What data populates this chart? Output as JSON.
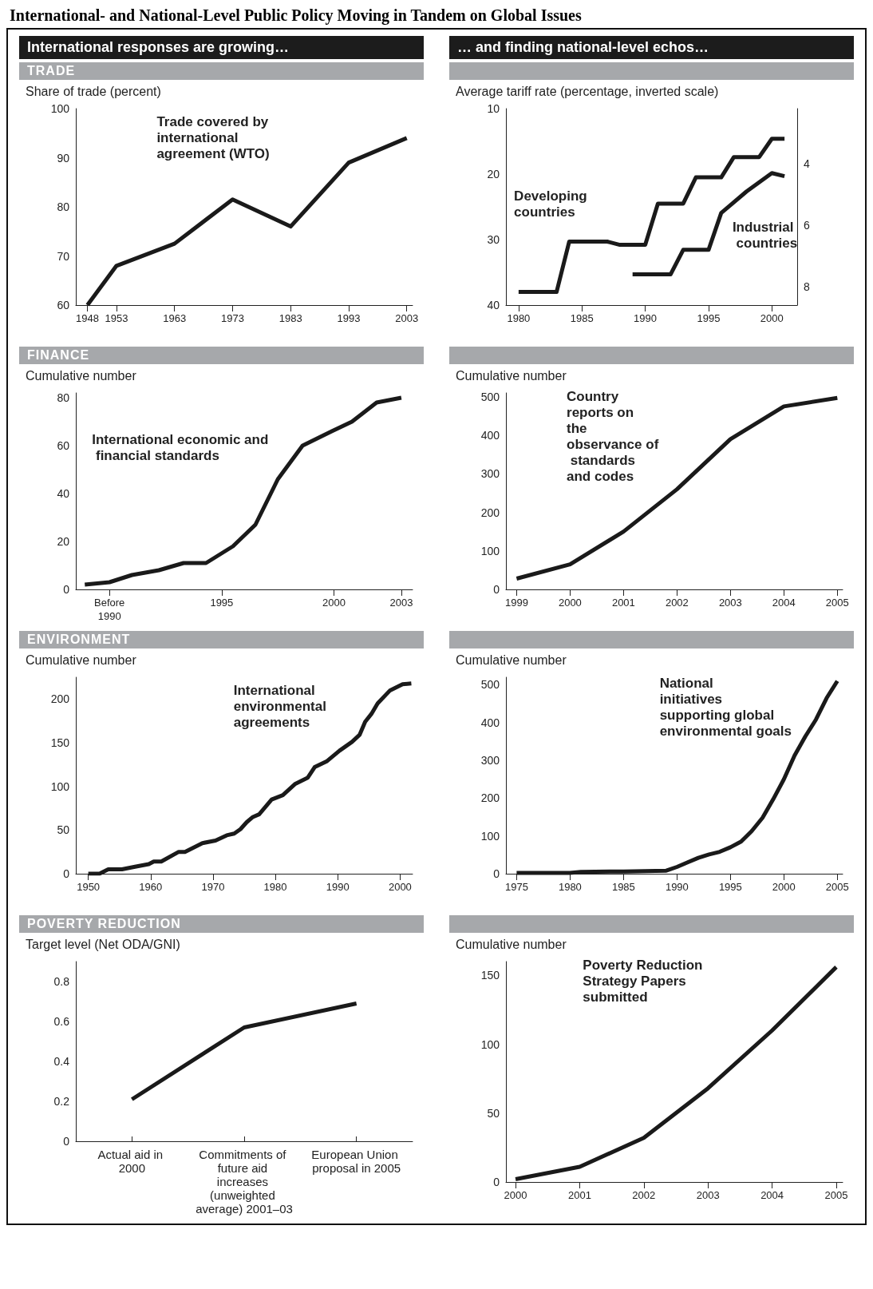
{
  "chart_data": [
    {
      "type": "line",
      "title": "TRADE",
      "subtitle": "International responses are growing…",
      "annotations": [
        "International- and National-Level Public Policy Moving in Tandem on Global Issues"
      ],
      "ylabel": "Share of trade (percent)",
      "xlim": [
        1946,
        2004
      ],
      "xticks": [
        1948,
        1953,
        1963,
        1973,
        1983,
        1993,
        2003
      ],
      "ylim": [
        60,
        100
      ],
      "yticks": [
        60,
        70,
        80,
        90,
        100
      ],
      "series": [
        {
          "name": "Trade covered by international agreement (WTO)",
          "color": "#1a1a1a",
          "x": [
            1948,
            1953,
            1963,
            1973,
            1983,
            1993,
            2003
          ],
          "values": [
            60,
            68,
            72.5,
            81.5,
            76,
            89,
            94
          ]
        }
      ]
    },
    {
      "type": "line",
      "subtitle": "… and finding national-level echos…",
      "ylabel": "Average tariff rate (percentage, inverted scale)",
      "xlim": [
        1979,
        2002
      ],
      "xticks": [
        1980,
        1985,
        1990,
        1995,
        2000
      ],
      "ylim": [
        40,
        10
      ],
      "yticks": [
        10,
        20,
        30,
        40
      ],
      "y2lim": [
        8.6,
        2.2
      ],
      "y2ticks": [
        4,
        6,
        8
      ],
      "series": [
        {
          "name": "Developing countries",
          "color": "#1a1a1a",
          "x": [
            1980,
            1983,
            1984,
            1987,
            1988,
            1990,
            1991,
            1993,
            1994,
            1996,
            1997,
            1999,
            2000,
            2001
          ],
          "values": [
            38,
            38,
            30.3,
            30.3,
            30.8,
            30.8,
            24.5,
            24.5,
            20.5,
            20.5,
            17.4,
            17.4,
            14.6,
            14.6
          ]
        },
        {
          "name": "Industrial countries",
          "color": "#1a1a1a",
          "axis": "y2",
          "x": [
            1989,
            1992,
            1993,
            1995,
            1996,
            1998,
            2000,
            2001
          ],
          "values": [
            7.6,
            7.6,
            6.8,
            6.8,
            5.6,
            4.9,
            4.3,
            4.4
          ]
        }
      ]
    },
    {
      "type": "line",
      "title": "FINANCE",
      "ylabel": "Cumulative number",
      "xlim": [
        1988.5,
        2003.5
      ],
      "xticks": [
        {
          "value": 1990,
          "label": "Before 1990"
        },
        1995,
        2000,
        2003
      ],
      "ylim": [
        0,
        82
      ],
      "yticks": [
        0,
        20,
        40,
        60,
        80
      ],
      "series": [
        {
          "name": "International economic and financial standards",
          "color": "#1a1a1a",
          "x": [
            1988.9,
            1990,
            1991,
            1992.2,
            1993.3,
            1994.3,
            1995.5,
            1996.5,
            1997.5,
            1998.6,
            1999.9,
            2000.8,
            2001.9,
            2003
          ],
          "values": [
            2,
            3,
            6,
            8,
            11,
            11,
            18,
            27,
            46,
            60,
            66,
            70,
            78,
            80
          ]
        }
      ]
    },
    {
      "type": "line",
      "ylabel": "Cumulative number",
      "xlim": [
        1998.8,
        2005.1
      ],
      "xticks": [
        1999,
        2000,
        2001,
        2002,
        2003,
        2004,
        2005
      ],
      "ylim": [
        0,
        510
      ],
      "yticks": [
        0,
        100,
        200,
        300,
        400,
        500
      ],
      "series": [
        {
          "name": "Country reports on the observance of standards and codes",
          "color": "#1a1a1a",
          "x": [
            1999,
            2000,
            2001,
            2002,
            2003,
            2004,
            2005
          ],
          "values": [
            28,
            65,
            150,
            260,
            390,
            475,
            497
          ]
        }
      ]
    },
    {
      "type": "line",
      "title": "ENVIRONMENT",
      "ylabel": "Cumulative number",
      "xlim": [
        1948,
        2002
      ],
      "xticks": [
        1950,
        1960,
        1970,
        1980,
        1990,
        2000
      ],
      "ylim": [
        0,
        225
      ],
      "yticks": [
        0,
        50,
        100,
        150,
        200
      ],
      "series": [
        {
          "name": "International environmental agreements",
          "color": "#1a1a1a",
          "x": [
            1950,
            1951.8,
            1953.2,
            1955.4,
            1957.5,
            1959.7,
            1960.5,
            1961.7,
            1964.5,
            1965.5,
            1968.3,
            1970.4,
            1972.2,
            1973.4,
            1974.4,
            1975.4,
            1976.4,
            1977.4,
            1979.4,
            1981.2,
            1983.2,
            1985.2,
            1986.3,
            1988.3,
            1990.3,
            1992.3,
            1993.5,
            1994.4,
            1995.4,
            1996.4,
            1998.4,
            2000.4,
            2001.8
          ],
          "values": [
            0,
            0,
            5,
            5,
            8,
            11,
            14,
            14,
            25,
            25,
            35,
            38,
            44,
            46,
            51,
            59,
            65,
            68,
            85,
            90,
            103,
            110,
            122,
            129,
            141,
            151,
            159,
            174,
            183,
            195,
            210,
            217,
            218
          ]
        }
      ]
    },
    {
      "type": "line",
      "ylabel": "Cumulative number",
      "xlim": [
        1974,
        2005.5
      ],
      "xticks": [
        1975,
        1980,
        1985,
        1990,
        1995,
        2000,
        2005
      ],
      "ylim": [
        0,
        520
      ],
      "yticks": [
        0,
        100,
        200,
        300,
        400,
        500
      ],
      "series": [
        {
          "name": "National initiatives supporting global environmental goals",
          "color": "#1a1a1a",
          "x": [
            1975,
            1976,
            1980,
            1981,
            1985,
            1989,
            1990,
            1991,
            1992,
            1993,
            1994,
            1995,
            1996,
            1997,
            1998,
            1999,
            2000,
            2001,
            2002,
            2003,
            2004,
            2005
          ],
          "values": [
            2,
            2,
            2,
            5,
            6,
            8,
            18,
            30,
            42,
            51,
            58,
            70,
            85,
            113,
            148,
            197,
            250,
            313,
            363,
            408,
            465,
            510
          ]
        }
      ]
    },
    {
      "type": "line",
      "title": "POVERTY REDUCTION",
      "ylabel": "Target level (Net ODA/GNI)",
      "categories": [
        "Actual aid in 2000",
        "Commitments of future aid increases (unweighted average) 2001–03",
        "European Union proposal in 2005"
      ],
      "ylim": [
        0,
        0.9
      ],
      "yticks": [
        0,
        0.2,
        0.4,
        0.6,
        0.8
      ],
      "series": [
        {
          "color": "#1a1a1a",
          "values": [
            0.21,
            0.57,
            0.69
          ]
        }
      ]
    },
    {
      "type": "line",
      "ylabel": "Cumulative number",
      "xlim": [
        1999.85,
        2005.1
      ],
      "xticks": [
        2000,
        2001,
        2002,
        2003,
        2004,
        2005
      ],
      "ylim": [
        0,
        160
      ],
      "yticks": [
        0,
        50,
        100,
        150
      ],
      "series": [
        {
          "name": "Poverty Reduction Strategy Papers submitted",
          "color": "#1a1a1a",
          "x": [
            2000,
            2001,
            2002,
            2003,
            2004,
            2005
          ],
          "values": [
            2,
            11,
            32,
            68,
            110,
            156
          ]
        }
      ]
    }
  ]
}
